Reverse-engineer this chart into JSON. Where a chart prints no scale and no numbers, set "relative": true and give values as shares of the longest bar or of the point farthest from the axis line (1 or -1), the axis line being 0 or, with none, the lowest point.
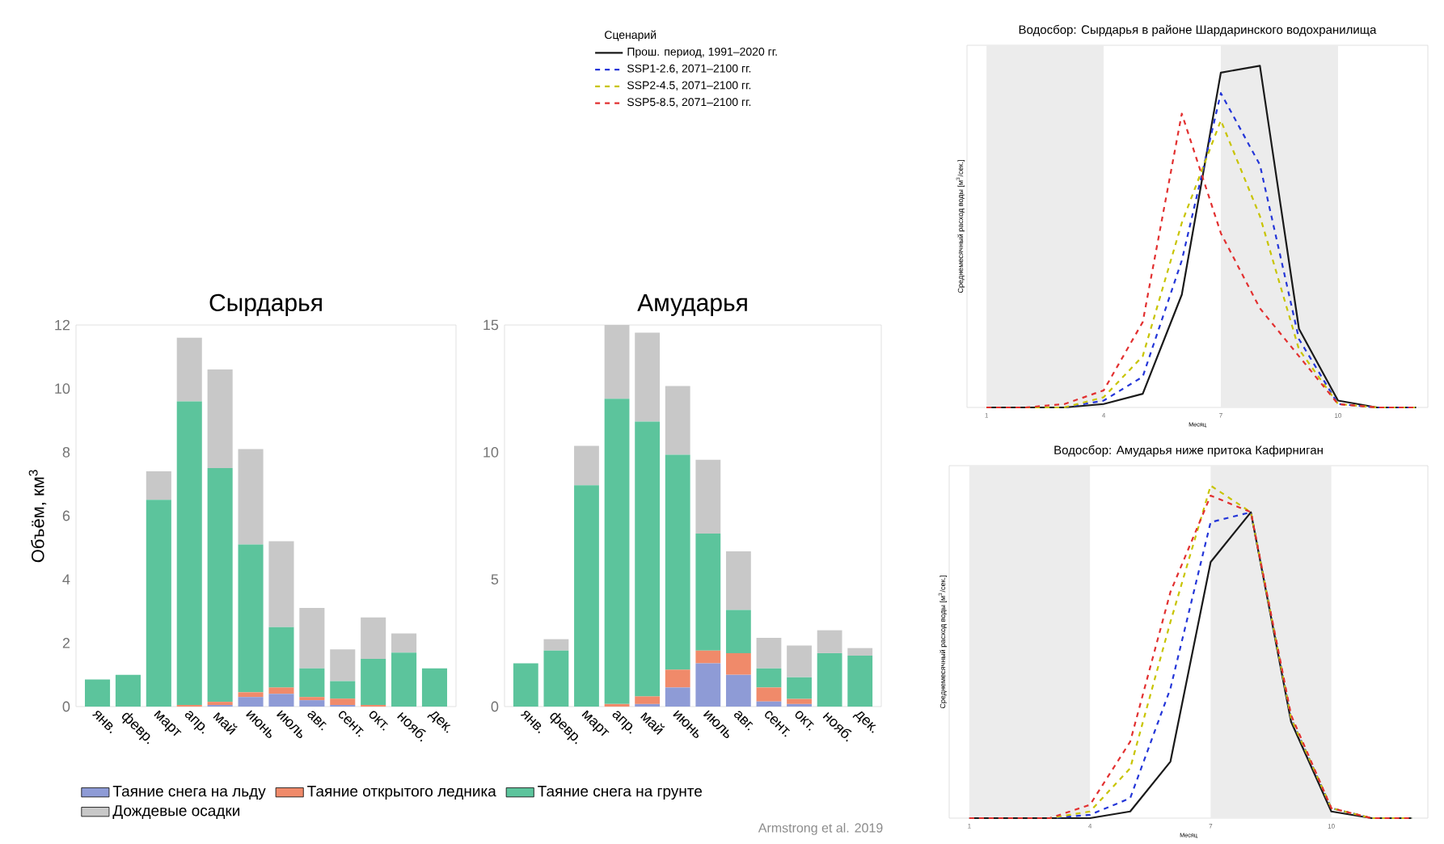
{
  "chart_data": [
    {
      "type": "bar",
      "title": "Сырдарья",
      "ylabel": "Объём, км$^{3}$",
      "stacked": true,
      "legend": "bottom",
      "categories": [
        "янв.",
        "февр.",
        "март",
        "апр.",
        "май",
        "июнь",
        "июль",
        "авг.",
        "сент.",
        "окт.",
        "нояб.",
        "дек."
      ],
      "ylim": [
        0,
        12
      ],
      "yticks": [
        0,
        2,
        4,
        6,
        8,
        10,
        12
      ],
      "series": [
        {
          "name": "Таяние снега на льду",
          "color": "#8e9bd6",
          "values": [
            0,
            0,
            0,
            0,
            0.05,
            0.3,
            0.4,
            0.2,
            0.05,
            0,
            0,
            0
          ]
        },
        {
          "name": "Таяние открытого ледника",
          "color": "#f08a6a",
          "values": [
            0,
            0,
            0,
            0.05,
            0.1,
            0.15,
            0.2,
            0.1,
            0.2,
            0.05,
            0,
            0
          ]
        },
        {
          "name": "Таяние снега на грунте",
          "color": "#5cc49c",
          "values": [
            0.85,
            1.0,
            6.5,
            9.55,
            7.35,
            4.65,
            1.9,
            0.9,
            0.55,
            1.45,
            1.7,
            1.2
          ]
        },
        {
          "name": "Дождевые осадки",
          "color": "#c8c8c8",
          "values": [
            0,
            0,
            0.9,
            2.0,
            3.1,
            3.0,
            2.7,
            1.9,
            1.0,
            1.3,
            0.6,
            0
          ]
        }
      ]
    },
    {
      "type": "bar",
      "title": "Амударья",
      "stacked": true,
      "categories": [
        "янв.",
        "февр.",
        "март",
        "апр.",
        "май",
        "июнь",
        "июль",
        "авг.",
        "сент.",
        "окт.",
        "нояб.",
        "дек."
      ],
      "ylim": [
        0,
        15
      ],
      "yticks": [
        0,
        5,
        10,
        15
      ],
      "annotations": [
        "Armstrong et al. 2019"
      ],
      "series": [
        {
          "color": "#8e9bd6",
          "values": [
            0,
            0,
            0,
            0,
            0.1,
            0.75,
            1.7,
            1.25,
            0.2,
            0.1,
            0,
            0
          ]
        },
        {
          "color": "#f08a6a",
          "values": [
            0,
            0,
            0,
            0.1,
            0.3,
            0.7,
            0.5,
            0.85,
            0.55,
            0.2,
            0,
            0
          ]
        },
        {
          "color": "#5cc49c",
          "values": [
            1.7,
            2.2,
            8.7,
            12.0,
            10.8,
            8.45,
            4.6,
            1.7,
            0.75,
            0.85,
            2.1,
            2.0
          ]
        },
        {
          "color": "#c8c8c8",
          "values": [
            0,
            0.45,
            1.55,
            2.9,
            3.5,
            2.7,
            2.9,
            2.3,
            1.2,
            1.25,
            0.9,
            0.3
          ]
        }
      ]
    },
    {
      "type": "line",
      "title": "Водосбор: Сырдарья в районе Шардаринского водохранилища",
      "ylabel": "Среднемесячный расход воды [м$^{3}$/сек.]",
      "xlabel": "Месяц",
      "relative": true,
      "legend": "top left",
      "legend_title": "Сценарий",
      "tick_labels": "x",
      "x": [
        1,
        2,
        3,
        4,
        5,
        6,
        7,
        8,
        9,
        10,
        11,
        12
      ],
      "xlim": [
        0.5,
        12.3
      ],
      "xticks": [
        1,
        4,
        7,
        10
      ],
      "bands": [
        {
          "axis": "x",
          "from": 1,
          "to": 4,
          "color": "#ececec"
        },
        {
          "axis": "x",
          "from": 7,
          "to": 10,
          "color": "#ececec"
        }
      ],
      "series": [
        {
          "name": "Прош. период, 1991–2020 гг.",
          "color": "#1a1a1a",
          "line_style": "solid",
          "values": [
            0,
            0,
            0,
            0.01,
            0.04,
            0.33,
            0.98,
            1.0,
            0.23,
            0.02,
            0,
            0
          ]
        },
        {
          "name": "SSP1-2.6, 2071–2100 гг.",
          "color": "#2436d8",
          "line_style": "dashed",
          "values": [
            0,
            0,
            0,
            0.02,
            0.09,
            0.43,
            0.92,
            0.71,
            0.2,
            0.01,
            0,
            0
          ]
        },
        {
          "name": "SSP2-4.5, 2071–2100 гг.",
          "color": "#c8c400",
          "line_style": "dashed",
          "values": [
            0,
            0,
            0,
            0.03,
            0.15,
            0.54,
            0.84,
            0.56,
            0.17,
            0.01,
            0,
            0
          ]
        },
        {
          "name": "SSP5-8.5, 2071–2100 гг.",
          "color": "#e23030",
          "line_style": "dashed",
          "values": [
            0,
            0,
            0.01,
            0.05,
            0.25,
            0.86,
            0.51,
            0.29,
            0.15,
            0.01,
            0,
            0
          ]
        }
      ]
    },
    {
      "type": "line",
      "title": "Водосбор: Амударья ниже притока Кафирниган",
      "ylabel": "Среднемесячный расход воды [м$^{3}$/сек.]",
      "xlabel": "Месяц",
      "relative": true,
      "tick_labels": "x",
      "x": [
        1,
        2,
        3,
        4,
        5,
        6,
        7,
        8,
        9,
        10,
        11,
        12
      ],
      "xlim": [
        0.5,
        12.4
      ],
      "xticks": [
        1,
        4,
        7,
        10
      ],
      "bands": [
        {
          "axis": "x",
          "from": 1,
          "to": 4,
          "color": "#ececec"
        },
        {
          "axis": "x",
          "from": 7,
          "to": 10,
          "color": "#ececec"
        }
      ],
      "series": [
        {
          "color": "#1a1a1a",
          "line_style": "solid",
          "values": [
            0,
            0,
            0,
            0,
            0.02,
            0.17,
            0.77,
            0.92,
            0.29,
            0.02,
            0,
            0
          ]
        },
        {
          "color": "#2436d8",
          "line_style": "dashed",
          "values": [
            0,
            0,
            0,
            0.01,
            0.06,
            0.39,
            0.89,
            0.92,
            0.3,
            0.03,
            0,
            0
          ]
        },
        {
          "color": "#c8c400",
          "line_style": "dashed",
          "values": [
            0,
            0,
            0,
            0.02,
            0.15,
            0.59,
            1.0,
            0.92,
            0.3,
            0.03,
            0,
            0
          ]
        },
        {
          "color": "#e23030",
          "line_style": "dashed",
          "values": [
            0,
            0,
            0,
            0.04,
            0.23,
            0.68,
            0.97,
            0.92,
            0.31,
            0.03,
            0,
            0
          ]
        }
      ]
    }
  ]
}
